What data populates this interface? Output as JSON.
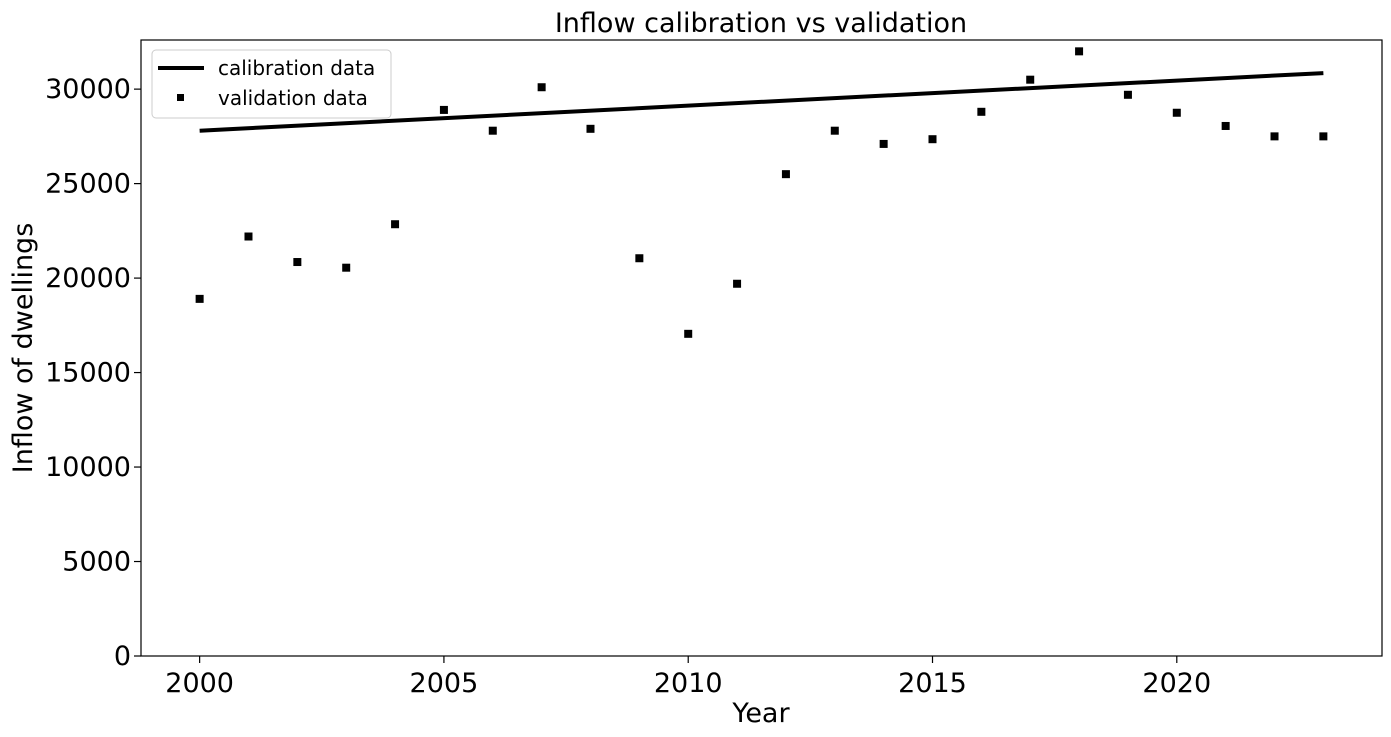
{
  "chart_data": {
    "type": "line",
    "title": "Inflow calibration vs validation",
    "xlabel": "Year",
    "ylabel": "Inflow of dwellings",
    "xlim": [
      1998.8,
      2024.2
    ],
    "ylim": [
      0,
      32600
    ],
    "xticks": [
      2000,
      2005,
      2010,
      2015,
      2020
    ],
    "yticks": [
      0,
      5000,
      10000,
      15000,
      20000,
      25000,
      30000
    ],
    "grid": false,
    "legend_position": "top-left",
    "colors": {
      "calibration": "#000000",
      "validation": "#000000",
      "axes": "#000000",
      "background": "#ffffff"
    },
    "series": [
      {
        "name": "calibration data",
        "kind": "line",
        "x": [
          2000,
          2023
        ],
        "y": [
          27800,
          30850
        ]
      },
      {
        "name": "validation data",
        "kind": "scatter",
        "marker": "square",
        "x": [
          2000,
          2001,
          2002,
          2003,
          2004,
          2005,
          2006,
          2007,
          2008,
          2009,
          2010,
          2011,
          2012,
          2013,
          2014,
          2015,
          2016,
          2017,
          2018,
          2019,
          2020,
          2021,
          2022,
          2023
        ],
        "y": [
          18900,
          22200,
          20850,
          20550,
          22850,
          28900,
          27800,
          30100,
          27900,
          21050,
          17050,
          19700,
          25500,
          27800,
          27100,
          27350,
          28800,
          30500,
          32000,
          29700,
          28750,
          28050,
          27500,
          27500
        ]
      }
    ]
  }
}
